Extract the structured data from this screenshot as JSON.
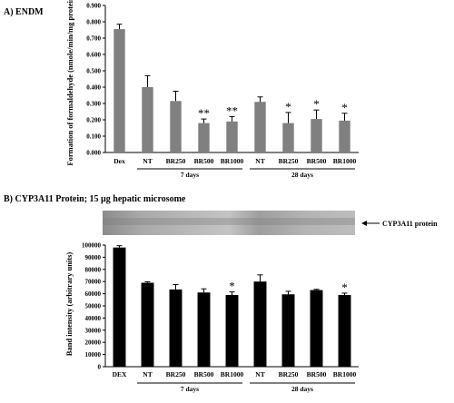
{
  "chart_data": [
    {
      "type": "bar",
      "panel_label": "A) ENDM",
      "ylabel": "Formation of formaldehyde (nmole/min/mg protein)",
      "ylim": [
        0,
        0.9
      ],
      "yticks": [
        "0.000",
        "0.100",
        "0.200",
        "0.300",
        "0.400",
        "0.500",
        "0.600",
        "0.700",
        "0.800",
        "0.900"
      ],
      "categories": [
        "Dex",
        "NT",
        "BR250",
        "BR500",
        "BR1000",
        "NT",
        "BR250",
        "BR500",
        "BR1000"
      ],
      "values": [
        0.755,
        0.4,
        0.315,
        0.18,
        0.19,
        0.31,
        0.18,
        0.205,
        0.195
      ],
      "errors": [
        0.03,
        0.07,
        0.06,
        0.025,
        0.03,
        0.03,
        0.065,
        0.055,
        0.045
      ],
      "significance": [
        "",
        "",
        "",
        "**",
        "**",
        "",
        "*",
        "*",
        "*"
      ],
      "groups": [
        {
          "label": "7 days",
          "from": 1,
          "to": 4
        },
        {
          "label": "28 days",
          "from": 5,
          "to": 8
        }
      ],
      "bar_color": "#808080"
    },
    {
      "type": "bar",
      "panel_label": "B) CYP3A11 Protein; 15 µg hepatic microsome",
      "blot_label": "CYP3A11 protein",
      "ylabel": "Band intensity (arbitrary units)",
      "ylim": [
        0,
        100000
      ],
      "yticks": [
        "0",
        "10000",
        "20000",
        "30000",
        "40000",
        "50000",
        "60000",
        "70000",
        "80000",
        "90000",
        "100000"
      ],
      "categories": [
        "DEX",
        "NT",
        "BR250",
        "BR500",
        "BR1000",
        "NT",
        "BR250",
        "BR500",
        "BR1000"
      ],
      "values": [
        98000,
        69000,
        63500,
        61000,
        59000,
        70000,
        59500,
        63000,
        59000
      ],
      "errors": [
        1500,
        800,
        4000,
        3000,
        2500,
        5500,
        2500,
        600,
        1500
      ],
      "significance": [
        "",
        "",
        "",
        "",
        "*",
        "",
        "",
        "",
        "*"
      ],
      "groups": [
        {
          "label": "7 days",
          "from": 1,
          "to": 4
        },
        {
          "label": "28 days",
          "from": 5,
          "to": 8
        }
      ],
      "bar_color": "#000000"
    }
  ]
}
